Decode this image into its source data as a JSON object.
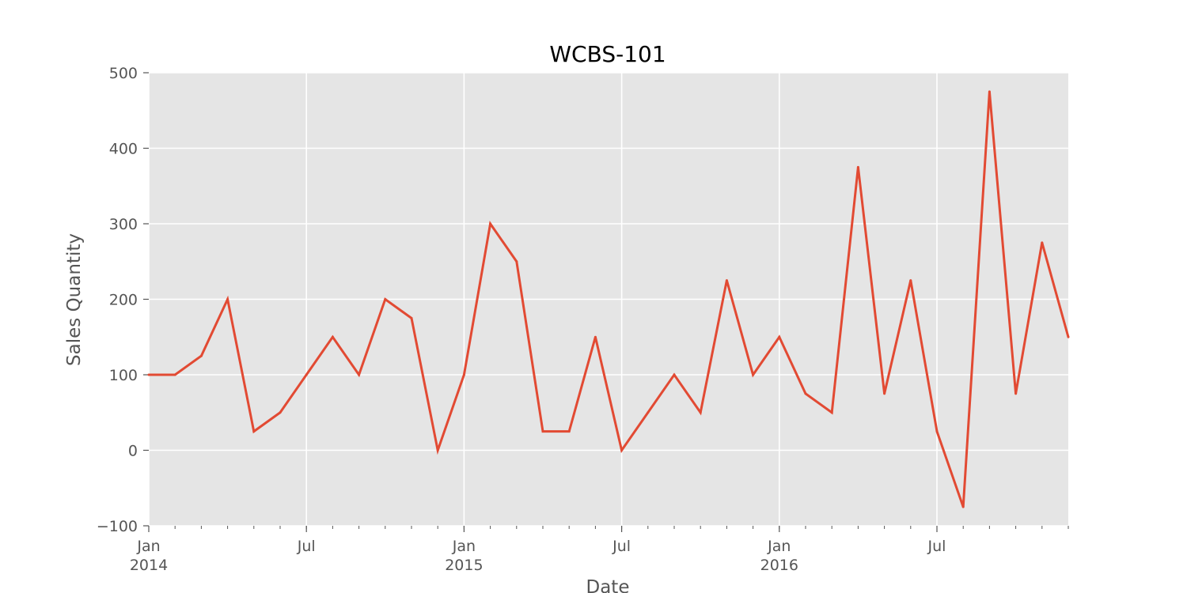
{
  "chart_data": {
    "type": "line",
    "title": "WCBS-101",
    "xlabel": "Date",
    "ylabel": "Sales Quantity",
    "ylim": [
      -100,
      500
    ],
    "xlim": [
      "2014-01",
      "2016-12"
    ],
    "y_ticks": [
      "−100",
      "0",
      "100",
      "200",
      "300",
      "400",
      "500"
    ],
    "x_major_ticks": [
      {
        "date": "2014-01",
        "label": "Jan",
        "year": "2014"
      },
      {
        "date": "2014-07",
        "label": "Jul",
        "year": ""
      },
      {
        "date": "2015-01",
        "label": "Jan",
        "year": "2015"
      },
      {
        "date": "2015-07",
        "label": "Jul",
        "year": ""
      },
      {
        "date": "2016-01",
        "label": "Jan",
        "year": "2016"
      },
      {
        "date": "2016-07",
        "label": "Jul",
        "year": ""
      }
    ],
    "grid": true,
    "colors": {
      "line": "#E24A33",
      "plot_bg": "#E5E5E5",
      "grid": "#FFFFFF"
    },
    "series": [
      {
        "x": [
          "2014-01",
          "2014-02",
          "2014-03",
          "2014-04",
          "2014-05",
          "2014-06",
          "2014-07",
          "2014-08",
          "2014-09",
          "2014-10",
          "2014-11",
          "2014-12",
          "2015-01",
          "2015-02",
          "2015-03",
          "2015-04",
          "2015-05",
          "2015-06",
          "2015-07",
          "2015-08",
          "2015-09",
          "2015-10",
          "2015-11",
          "2015-12",
          "2016-01",
          "2016-02",
          "2016-03",
          "2016-04",
          "2016-05",
          "2016-06",
          "2016-07",
          "2016-08",
          "2016-09",
          "2016-10",
          "2016-11",
          "2016-12"
        ],
        "values": [
          100,
          100,
          125,
          200,
          25,
          50,
          100,
          150,
          100,
          200,
          175,
          0,
          100,
          300,
          250,
          25,
          25,
          150,
          0,
          50,
          100,
          50,
          225,
          100,
          150,
          75,
          50,
          375,
          75,
          225,
          25,
          -75,
          475,
          75,
          275,
          150
        ]
      }
    ]
  }
}
